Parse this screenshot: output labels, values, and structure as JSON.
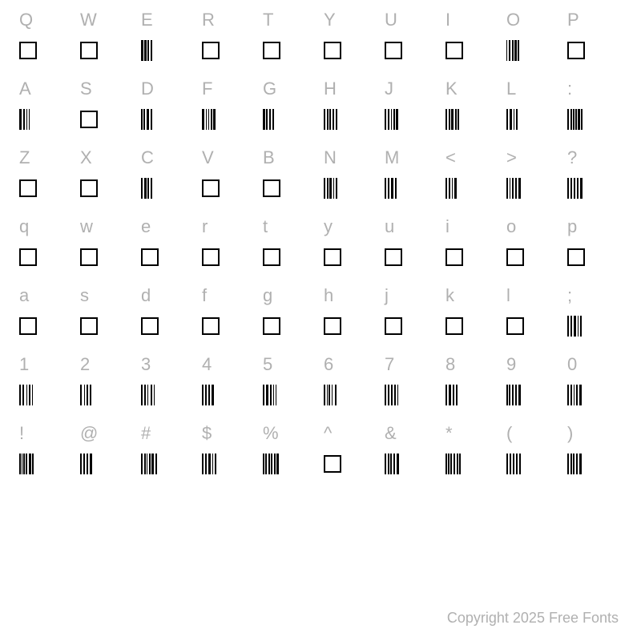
{
  "background_color": "#ffffff",
  "label_color": "#b0b0b0",
  "glyph_color": "#000000",
  "label_fontsize": 22,
  "copyright_fontsize": 18,
  "box_size": 22,
  "box_border": 2,
  "barcode_height": 26,
  "rows": [
    {
      "labels": [
        "Q",
        "W",
        "E",
        "R",
        "T",
        "Y",
        "U",
        "I",
        "O",
        "P"
      ],
      "glyphs": [
        {
          "type": "box"
        },
        {
          "type": "box"
        },
        {
          "type": "barcode",
          "widths": [
            3,
            1,
            3,
            1,
            2,
            2,
            2
          ]
        },
        {
          "type": "box"
        },
        {
          "type": "box"
        },
        {
          "type": "box"
        },
        {
          "type": "box"
        },
        {
          "type": "box"
        },
        {
          "type": "barcode",
          "widths": [
            1,
            2,
            2,
            2,
            2,
            1,
            3,
            1,
            2
          ]
        },
        {
          "type": "box"
        }
      ]
    },
    {
      "labels": [
        "A",
        "S",
        "D",
        "F",
        "G",
        "H",
        "J",
        "K",
        "L",
        ":"
      ],
      "glyphs": [
        {
          "type": "barcode",
          "widths": [
            3,
            2,
            2,
            2,
            1,
            2,
            1,
            2
          ]
        },
        {
          "type": "box"
        },
        {
          "type": "barcode",
          "widths": [
            2,
            1,
            2,
            2,
            3,
            2,
            2
          ]
        },
        {
          "type": "barcode",
          "widths": [
            3,
            2,
            1,
            2,
            1,
            2,
            2,
            1,
            3
          ]
        },
        {
          "type": "barcode",
          "widths": [
            3,
            1,
            2,
            2,
            2,
            2,
            2
          ]
        },
        {
          "type": "barcode",
          "widths": [
            2,
            2,
            2,
            1,
            2,
            2,
            2,
            2,
            2
          ]
        },
        {
          "type": "barcode",
          "widths": [
            2,
            2,
            2,
            2,
            1,
            2,
            2,
            1,
            3
          ]
        },
        {
          "type": "barcode",
          "widths": [
            2,
            2,
            2,
            1,
            3,
            2,
            2,
            1,
            2
          ]
        },
        {
          "type": "barcode",
          "widths": [
            2,
            2,
            3,
            2,
            1,
            2,
            2
          ]
        },
        {
          "type": "barcode",
          "widths": [
            2,
            2,
            2,
            1,
            2,
            1,
            2,
            1,
            3,
            1,
            2
          ]
        }
      ]
    },
    {
      "labels": [
        "Z",
        "X",
        "C",
        "V",
        "B",
        "N",
        "M",
        "<",
        ">",
        "?"
      ],
      "glyphs": [
        {
          "type": "box"
        },
        {
          "type": "box"
        },
        {
          "type": "barcode",
          "widths": [
            2,
            2,
            3,
            1,
            2,
            2,
            2
          ]
        },
        {
          "type": "box"
        },
        {
          "type": "box"
        },
        {
          "type": "barcode",
          "widths": [
            2,
            2,
            2,
            1,
            3,
            2,
            1,
            2,
            2
          ]
        },
        {
          "type": "barcode",
          "widths": [
            2,
            2,
            2,
            2,
            3,
            2,
            2
          ]
        },
        {
          "type": "barcode",
          "widths": [
            2,
            2,
            2,
            2,
            1,
            2,
            3
          ]
        },
        {
          "type": "barcode",
          "widths": [
            2,
            2,
            1,
            2,
            2,
            2,
            2,
            2,
            3
          ]
        },
        {
          "type": "barcode",
          "widths": [
            2,
            2,
            2,
            2,
            2,
            2,
            2,
            2,
            3
          ]
        }
      ]
    },
    {
      "labels": [
        "q",
        "w",
        "e",
        "r",
        "t",
        "y",
        "u",
        "i",
        "o",
        "p"
      ],
      "glyphs": [
        {
          "type": "box"
        },
        {
          "type": "box"
        },
        {
          "type": "box"
        },
        {
          "type": "box"
        },
        {
          "type": "box"
        },
        {
          "type": "box"
        },
        {
          "type": "box"
        },
        {
          "type": "box"
        },
        {
          "type": "box"
        },
        {
          "type": "box"
        }
      ]
    },
    {
      "labels": [
        "a",
        "s",
        "d",
        "f",
        "g",
        "h",
        "j",
        "k",
        "l",
        ";"
      ],
      "glyphs": [
        {
          "type": "box"
        },
        {
          "type": "box"
        },
        {
          "type": "box"
        },
        {
          "type": "box"
        },
        {
          "type": "box"
        },
        {
          "type": "box"
        },
        {
          "type": "box"
        },
        {
          "type": "box"
        },
        {
          "type": "box"
        },
        {
          "type": "barcode",
          "widths": [
            2,
            2,
            2,
            2,
            3,
            2,
            1,
            2,
            2
          ]
        }
      ]
    },
    {
      "labels": [
        "1",
        "2",
        "3",
        "4",
        "5",
        "6",
        "7",
        "8",
        "9",
        "0"
      ],
      "glyphs": [
        {
          "type": "barcode",
          "widths": [
            2,
            2,
            2,
            3,
            1,
            2,
            2,
            2,
            1
          ]
        },
        {
          "type": "barcode",
          "widths": [
            2,
            3,
            1,
            2,
            2,
            2,
            2
          ]
        },
        {
          "type": "barcode",
          "widths": [
            2,
            2,
            2,
            2,
            1,
            3,
            2,
            2,
            1
          ]
        },
        {
          "type": "barcode",
          "widths": [
            2,
            2,
            2,
            2,
            2,
            2,
            3
          ]
        },
        {
          "type": "barcode",
          "widths": [
            2,
            2,
            3,
            2,
            2,
            2,
            1,
            2,
            1
          ]
        },
        {
          "type": "barcode",
          "widths": [
            2,
            2,
            1,
            1,
            2,
            2,
            1,
            3,
            2,
            2
          ]
        },
        {
          "type": "barcode",
          "widths": [
            2,
            2,
            2,
            2,
            2,
            2,
            2,
            2,
            1
          ]
        },
        {
          "type": "barcode",
          "widths": [
            2,
            2,
            3,
            2,
            2,
            2,
            2
          ]
        },
        {
          "type": "barcode",
          "widths": [
            2,
            1,
            2,
            2,
            2,
            2,
            2,
            2,
            3
          ]
        },
        {
          "type": "barcode",
          "widths": [
            2,
            2,
            2,
            2,
            1,
            2,
            2,
            2,
            3
          ]
        }
      ]
    },
    {
      "labels": [
        "!",
        "@",
        "#",
        "$",
        "%",
        "^",
        "&",
        "*",
        "(",
        ")"
      ],
      "glyphs": [
        {
          "type": "barcode",
          "widths": [
            2,
            1,
            1,
            1,
            2,
            1,
            2,
            2,
            3,
            1,
            2
          ]
        },
        {
          "type": "barcode",
          "widths": [
            2,
            2,
            2,
            2,
            2,
            2,
            3
          ]
        },
        {
          "type": "barcode",
          "widths": [
            2,
            2,
            2,
            1,
            1,
            2,
            2,
            1,
            3,
            2,
            2
          ]
        },
        {
          "type": "barcode",
          "widths": [
            2,
            2,
            2,
            2,
            3,
            2,
            1,
            2,
            2
          ]
        },
        {
          "type": "barcode",
          "widths": [
            2,
            1,
            2,
            2,
            2,
            1,
            2,
            2,
            2,
            1,
            3
          ]
        },
        {
          "type": "box"
        },
        {
          "type": "barcode",
          "widths": [
            2,
            2,
            2,
            1,
            2,
            2,
            2,
            2,
            3
          ]
        },
        {
          "type": "barcode",
          "widths": [
            2,
            1,
            2,
            1,
            2,
            2,
            2,
            2,
            2,
            1,
            2
          ]
        },
        {
          "type": "barcode",
          "widths": [
            2,
            2,
            2,
            2,
            2,
            2,
            2,
            2,
            2
          ]
        },
        {
          "type": "barcode",
          "widths": [
            2,
            2,
            2,
            1,
            2,
            2,
            2,
            2,
            3
          ]
        }
      ]
    }
  ],
  "copyright": "Copyright 2025 Free Fonts"
}
